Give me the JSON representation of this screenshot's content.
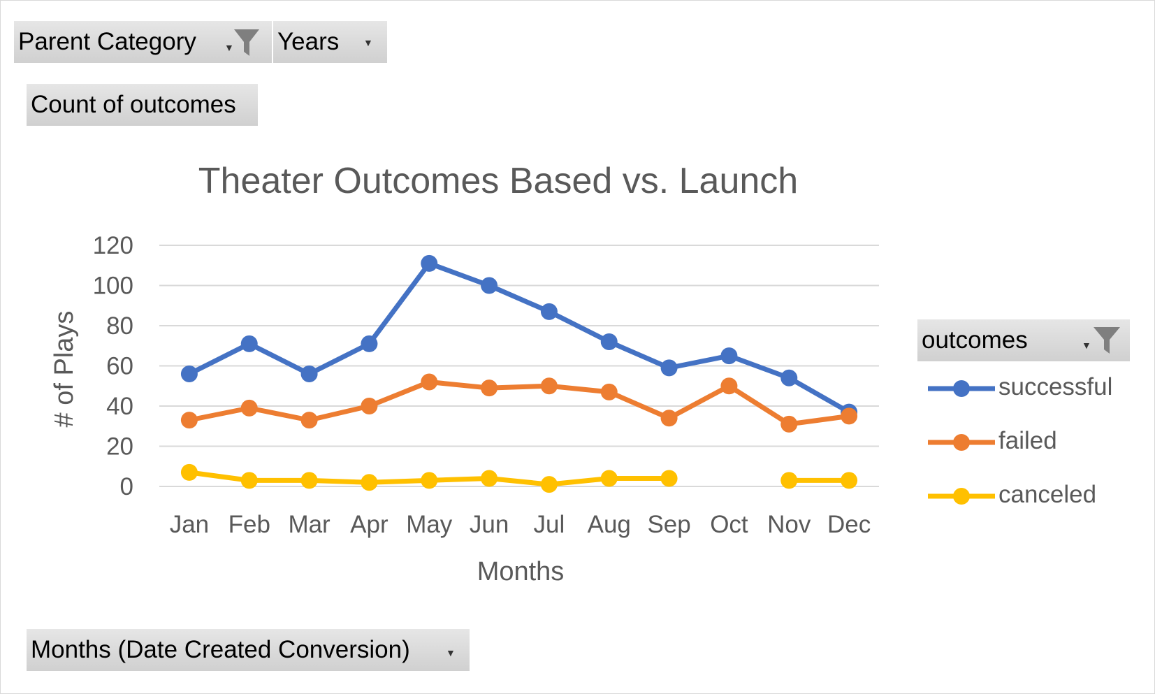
{
  "filters": {
    "parent_category": "Parent Category",
    "years": "Years",
    "values_field": "Count of outcomes",
    "axis_field": "Months (Date Created Conversion)",
    "legend_field": "outcomes"
  },
  "colors": {
    "successful": "#4472C4",
    "failed": "#ED7D31",
    "canceled": "#FFC000",
    "grid": "#d9d9d9",
    "text": "#595959"
  },
  "chart_data": {
    "type": "line",
    "title": "Theater Outcomes Based vs. Launch",
    "xlabel": "Months",
    "ylabel": "# of Plays",
    "ylim": [
      0,
      120
    ],
    "yticks": [
      0,
      20,
      40,
      60,
      80,
      100,
      120
    ],
    "grid": true,
    "legend_position": "right",
    "categories": [
      "Jan",
      "Feb",
      "Mar",
      "Apr",
      "May",
      "Jun",
      "Jul",
      "Aug",
      "Sep",
      "Oct",
      "Nov",
      "Dec"
    ],
    "series": [
      {
        "name": "successful",
        "color": "#4472C4",
        "values": [
          56,
          71,
          56,
          71,
          111,
          100,
          87,
          72,
          59,
          65,
          54,
          37
        ]
      },
      {
        "name": "failed",
        "color": "#ED7D31",
        "values": [
          33,
          39,
          33,
          40,
          52,
          49,
          50,
          47,
          34,
          50,
          31,
          35
        ]
      },
      {
        "name": "canceled",
        "color": "#FFC000",
        "values": [
          7,
          3,
          3,
          2,
          3,
          4,
          1,
          4,
          4,
          null,
          3,
          3
        ]
      }
    ]
  }
}
